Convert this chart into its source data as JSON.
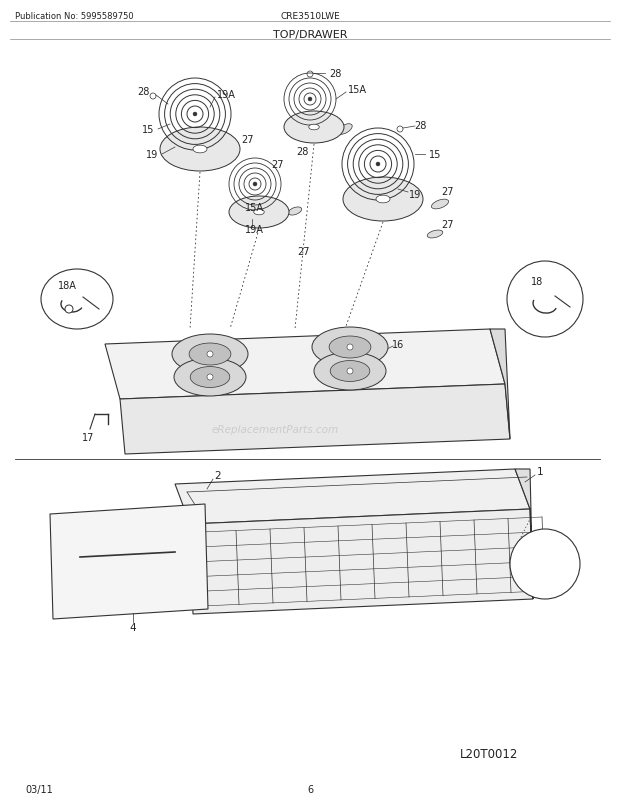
{
  "title": "TOP/DRAWER",
  "pub_no": "Publication No: 5995589750",
  "model": "CRE3510LWE",
  "date": "03/11",
  "page": "6",
  "diagram_id": "L20T0012",
  "watermark": "eReplacementParts.com",
  "bg_color": "#ffffff",
  "line_color": "#333333",
  "label_color": "#222222"
}
